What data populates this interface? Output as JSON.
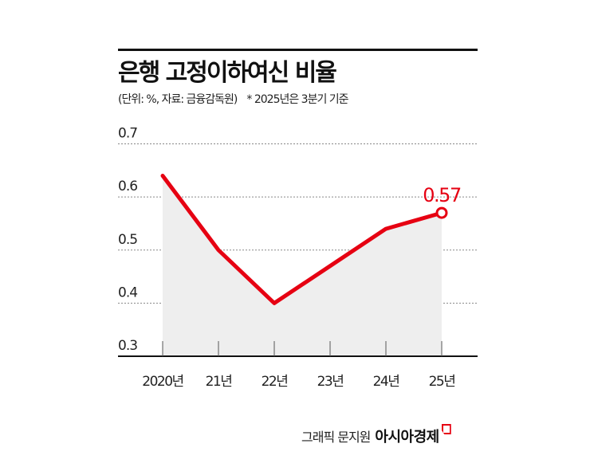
{
  "header": {
    "title": "은행 고정이하여신 비율",
    "subtitle": "(단위: %, 자료: 금융감독원)",
    "note": "* 2025년은 3분기 기준"
  },
  "credit": {
    "text": "그래픽 문지원",
    "brand": "아시아경제"
  },
  "colors": {
    "line": "#e60012",
    "area": "#eeeeee",
    "grid": "#888888",
    "axis": "#111111"
  },
  "chart_data": {
    "type": "line",
    "title": "은행 고정이하여신 비율",
    "subtitle": "(단위: %, 자료: 금융감독원)",
    "annotation": "* 2025년은 3분기 기준",
    "categories": [
      "2020년",
      "21년",
      "22년",
      "23년",
      "24년",
      "25년"
    ],
    "series": [
      {
        "name": "고정이하여신 비율",
        "values": [
          0.64,
          0.5,
          0.4,
          0.47,
          0.54,
          0.57
        ]
      }
    ],
    "highlight": {
      "index": 5,
      "label": "0.57"
    },
    "yticks": [
      "0.7",
      "0.6",
      "0.5",
      "0.4",
      "0.3"
    ],
    "xlabel": "",
    "ylabel": "%",
    "ylim": [
      0.3,
      0.7
    ],
    "grid": true,
    "legend": "none"
  }
}
